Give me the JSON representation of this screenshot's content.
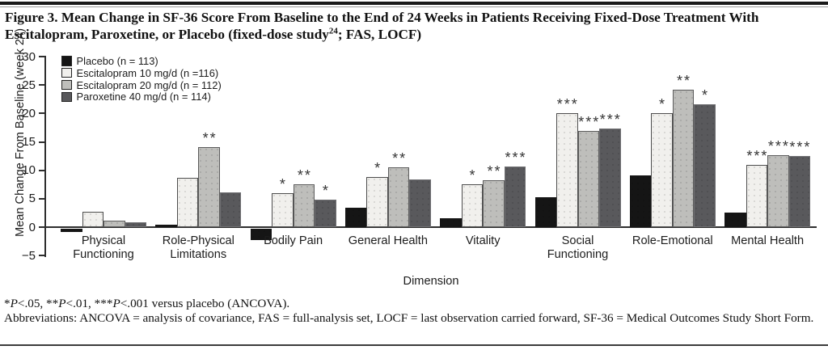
{
  "title": {
    "line1": "Figure 3. Mean Change in SF-36 Score From Baseline to the End of 24 Weeks in Patients Receiving Fixed-Dose Treatment With",
    "line2_pre": "Escitalopram, Paroxetine, or Placebo (fixed-dose study",
    "line2_sup": "24",
    "line2_post": "; FAS, LOCF)"
  },
  "footnotes": {
    "sig": {
      "s1": "*",
      "s2": "P",
      "s3": "<.05, **",
      "s4": "P",
      "s5": "<.01, ***",
      "s6": "P",
      "s7": "<.001 versus placebo (ANCOVA)."
    },
    "abbreviations": "Abbreviations: ANCOVA = analysis of covariance, FAS = full-analysis set, LOCF = last observation carried forward, SF-36 = Medical Outcomes Study Short Form."
  },
  "chart_data": {
    "type": "bar",
    "title": "",
    "ylabel": "Mean Change From Baseline (week 24)",
    "xlabel": "Dimension",
    "ylim": [
      -5,
      30
    ],
    "yticks": [
      30,
      25,
      20,
      15,
      10,
      5,
      0,
      -5
    ],
    "grid": false,
    "legend_position": "top-left",
    "categories": [
      "Physical\nFunctioning",
      "Role-Physical\nLimitations",
      "Bodily Pain",
      "General Health",
      "Vitality",
      "Social\nFunctioning",
      "Role-Emotional",
      "Mental Health"
    ],
    "series": [
      {
        "name": "Placebo (n = 113)",
        "fill": "#151515",
        "border": "#151515",
        "values": [
          -0.6,
          0.4,
          -2.0,
          3.4,
          1.6,
          5.3,
          9.1,
          2.5
        ],
        "sig": [
          "",
          "",
          "",
          "",
          "",
          "",
          "",
          ""
        ]
      },
      {
        "name": "Escitalopram 10 mg/d (n =116)",
        "fill": "#f1f0ed",
        "border": "#4d4d4d",
        "values": [
          2.7,
          8.7,
          6.0,
          8.8,
          7.6,
          20.1,
          20.1,
          10.9
        ],
        "sig": [
          "",
          "",
          "*",
          "*",
          "*",
          "***",
          "*",
          "***"
        ]
      },
      {
        "name": "Escitalopram 20 mg/d (n = 112)",
        "fill": "#bebebb",
        "border": "#5c5c5c",
        "values": [
          1.2,
          14.1,
          7.6,
          10.6,
          8.3,
          16.9,
          24.2,
          12.7
        ],
        "sig": [
          "",
          "**",
          "**",
          "**",
          "**",
          "***",
          "**",
          "***"
        ]
      },
      {
        "name": "Paroxetine 40 mg/d (n = 114)",
        "fill": "#59595c",
        "border": "#6f6f72",
        "values": [
          0.8,
          6.1,
          4.8,
          8.4,
          10.7,
          17.3,
          21.6,
          12.5
        ],
        "sig": [
          "",
          "",
          "*",
          "",
          "***",
          "***",
          "*",
          "***"
        ]
      }
    ]
  }
}
